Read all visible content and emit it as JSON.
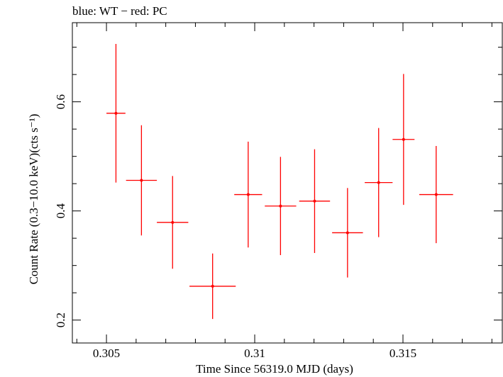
{
  "chart_data": {
    "type": "scatter",
    "title": "blue: WT − red: PC",
    "xlabel": "Time Since 56319.0 MJD (days)",
    "ylabel": "Count Rate (0.3−10.0 keV)(cts s⁻¹)",
    "xlim": [
      0.30385,
      0.31835
    ],
    "ylim": [
      0.158,
      0.745
    ],
    "x_ticks": [
      {
        "value": 0.305,
        "label": "0.305"
      },
      {
        "value": 0.31,
        "label": "0.31"
      },
      {
        "value": 0.315,
        "label": "0.315"
      }
    ],
    "y_ticks": [
      {
        "value": 0.2,
        "label": "0.2"
      },
      {
        "value": 0.4,
        "label": "0.4"
      },
      {
        "value": 0.6,
        "label": "0.6"
      }
    ],
    "x_minor_step": 0.001,
    "y_minor_step": 0.05,
    "grid": false,
    "series": [
      {
        "color": "#ff0000",
        "points": [
          {
            "x": 0.30532,
            "xerr": 0.00032,
            "y": 0.579,
            "yerr_low": 0.127,
            "yerr_high": 0.127
          },
          {
            "x": 0.30618,
            "xerr": 0.00052,
            "y": 0.456,
            "yerr_low": 0.101,
            "yerr_high": 0.101
          },
          {
            "x": 0.30723,
            "xerr": 0.00053,
            "y": 0.379,
            "yerr_low": 0.085,
            "yerr_high": 0.085
          },
          {
            "x": 0.30858,
            "xerr": 0.00078,
            "y": 0.262,
            "yerr_low": 0.06,
            "yerr_high": 0.06
          },
          {
            "x": 0.30978,
            "xerr": 0.00047,
            "y": 0.43,
            "yerr_low": 0.097,
            "yerr_high": 0.097
          },
          {
            "x": 0.31087,
            "xerr": 0.00053,
            "y": 0.409,
            "yerr_low": 0.09,
            "yerr_high": 0.09
          },
          {
            "x": 0.31202,
            "xerr": 0.00052,
            "y": 0.418,
            "yerr_low": 0.095,
            "yerr_high": 0.095
          },
          {
            "x": 0.31313,
            "xerr": 0.00052,
            "y": 0.36,
            "yerr_low": 0.082,
            "yerr_high": 0.082
          },
          {
            "x": 0.31418,
            "xerr": 0.00047,
            "y": 0.452,
            "yerr_low": 0.1,
            "yerr_high": 0.1
          },
          {
            "x": 0.31502,
            "xerr": 0.00037,
            "y": 0.531,
            "yerr_low": 0.12,
            "yerr_high": 0.12
          },
          {
            "x": 0.31612,
            "xerr": 0.00057,
            "y": 0.43,
            "yerr_low": 0.089,
            "yerr_high": 0.089
          }
        ]
      }
    ]
  }
}
